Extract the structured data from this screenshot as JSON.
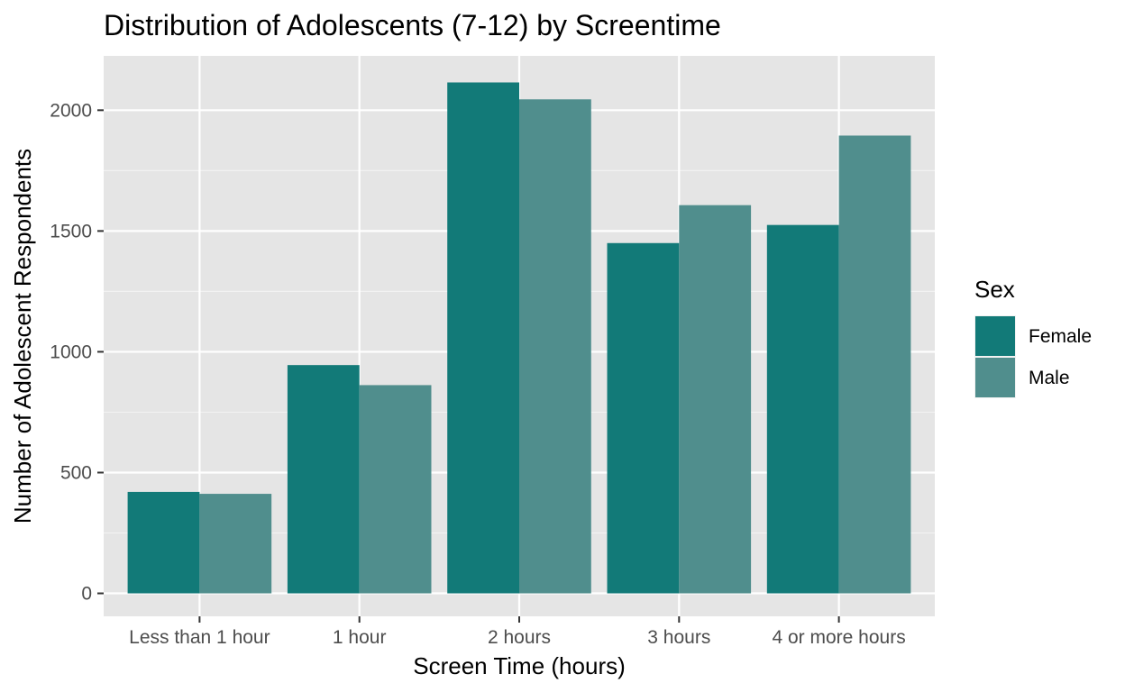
{
  "chart_data": {
    "type": "bar",
    "title": "Distribution of Adolescents (7-12) by Screentime",
    "xlabel": "Screen Time (hours)",
    "ylabel": "Number of Adolescent Respondents",
    "categories": [
      "Less than 1 hour",
      "1 hour",
      "2 hours",
      "3 hours",
      "4 or more hours"
    ],
    "series": [
      {
        "name": "Female",
        "values": [
          420,
          945,
          2115,
          1450,
          1525
        ]
      },
      {
        "name": "Male",
        "values": [
          412,
          862,
          2045,
          1607,
          1895
        ]
      }
    ],
    "ylim": [
      -95,
      2225
    ],
    "yticks": [
      0,
      500,
      1000,
      1500,
      2000
    ],
    "grid": true,
    "legend": {
      "title": "Sex",
      "position": "right"
    }
  },
  "colors": {
    "panel_background": "#e5e5e5",
    "grid_major": "#ffffff",
    "grid_minor": "#f2f2f2",
    "tick_mark": "#333333",
    "series": [
      "#127a78",
      "#508e8d"
    ]
  }
}
